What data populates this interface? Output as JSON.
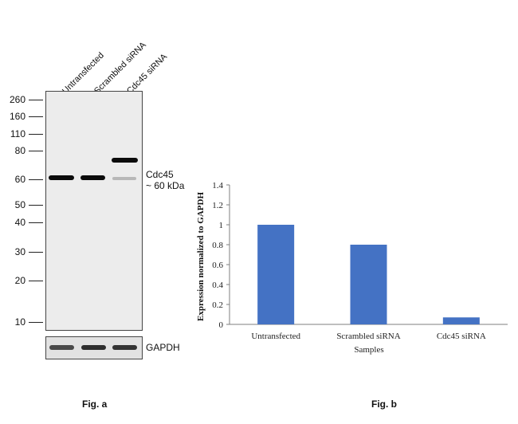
{
  "fig_a": {
    "lanes": [
      "Untransfected",
      "Scrambled siRNA",
      "Cdc45 siRNA"
    ],
    "markers": [
      "260",
      "160",
      "110",
      "80",
      "60",
      "50",
      "40",
      "30",
      "20",
      "10"
    ],
    "target_label": "Cdc45",
    "target_size": "~ 60 kDa",
    "loading_control": "GAPDH",
    "caption": "Fig. a"
  },
  "fig_b": {
    "caption": "Fig. b"
  },
  "chart_data": {
    "type": "bar",
    "categories": [
      "Untransfected",
      "Scrambled siRNA",
      "Cdc45 siRNA"
    ],
    "values": [
      1.0,
      0.8,
      0.07
    ],
    "title": "",
    "xlabel": "Samples",
    "ylabel": "Expression normalized to GAPDH",
    "ylim": [
      0,
      1.4
    ],
    "yticks": [
      "0",
      "0.2",
      "0.4",
      "0.6",
      "0.8",
      "1",
      "1.2",
      "1.4"
    ],
    "grid": false,
    "bar_color": "#4472C4"
  }
}
